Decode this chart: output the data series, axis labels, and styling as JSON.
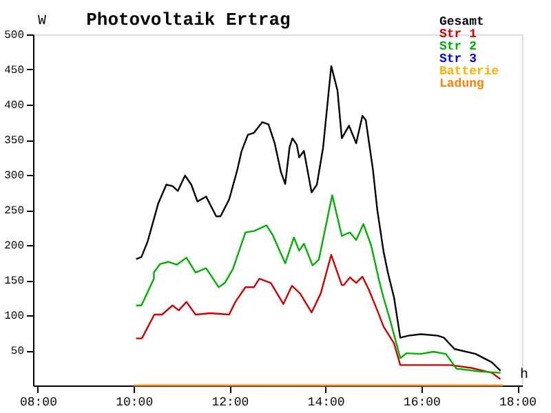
{
  "chart_data": {
    "type": "line",
    "title": "Photovoltaik Ertrag",
    "xlabel": "h",
    "ylabel": "W",
    "xlim": [
      7.9,
      18.1
    ],
    "ylim": [
      0,
      500
    ],
    "xticks": [
      {
        "value": 8,
        "label": "08:00"
      },
      {
        "value": 10,
        "label": "10:00"
      },
      {
        "value": 12,
        "label": "12:00"
      },
      {
        "value": 14,
        "label": "14:00"
      },
      {
        "value": 16,
        "label": "16:00"
      },
      {
        "value": 18,
        "label": "18:00"
      }
    ],
    "yticks": [
      50,
      100,
      150,
      200,
      250,
      300,
      350,
      400,
      450,
      500
    ],
    "grid": false,
    "legend": "top right",
    "marker": "none",
    "line_style": "solid",
    "series": [
      {
        "name": "Gesamt",
        "color": "#000000",
        "x": [
          10.05,
          10.16,
          10.29,
          10.51,
          10.68,
          10.81,
          10.92,
          11.07,
          11.2,
          11.33,
          11.51,
          11.72,
          11.81,
          11.99,
          12.16,
          12.25,
          12.38,
          12.51,
          12.68,
          12.81,
          12.94,
          13.07,
          13.16,
          13.25,
          13.31,
          13.4,
          13.45,
          13.55,
          13.71,
          13.82,
          13.95,
          14.12,
          14.25,
          14.34,
          14.49,
          14.64,
          14.77,
          14.84,
          14.99,
          15.08,
          15.21,
          15.3,
          15.43,
          15.56,
          15.73,
          15.99,
          16.34,
          16.47,
          16.69,
          17.13,
          17.47,
          17.65
        ],
        "values": [
          180,
          183,
          205,
          259,
          286,
          284,
          277,
          299,
          286,
          262,
          269,
          241,
          241,
          265,
          307,
          334,
          357,
          360,
          375,
          372,
          345,
          304,
          287,
          339,
          352,
          343,
          325,
          334,
          275,
          286,
          339,
          455,
          420,
          352,
          370,
          345,
          384,
          378,
          307,
          250,
          191,
          161,
          125,
          68,
          71,
          73,
          71,
          68,
          52,
          45,
          33,
          21
        ]
      },
      {
        "name": "Str 1",
        "color": "#cc0000",
        "x": [
          10.05,
          10.17,
          10.43,
          10.59,
          10.81,
          10.94,
          11.1,
          11.29,
          11.6,
          11.99,
          12.12,
          12.33,
          12.51,
          12.62,
          12.86,
          13.12,
          13.3,
          13.47,
          13.71,
          13.9,
          14.12,
          14.34,
          14.38,
          14.51,
          14.64,
          14.77,
          14.9,
          15.08,
          15.21,
          15.43,
          15.56,
          15.99,
          16.6,
          17.04,
          17.47,
          17.65
        ],
        "values": [
          67,
          67,
          101,
          101,
          114,
          107,
          119,
          101,
          103,
          101,
          119,
          140,
          140,
          152,
          146,
          116,
          142,
          131,
          104,
          131,
          186,
          143,
          143,
          154,
          146,
          155,
          137,
          107,
          84,
          60,
          29,
          29,
          29,
          25,
          18,
          9
        ]
      },
      {
        "name": "Str 2",
        "color": "#00b000",
        "x": [
          10.05,
          10.16,
          10.42,
          10.42,
          10.55,
          10.72,
          10.9,
          11.1,
          11.29,
          11.51,
          11.77,
          11.9,
          12.07,
          12.33,
          12.51,
          12.77,
          12.9,
          13.16,
          13.34,
          13.45,
          13.55,
          13.73,
          13.86,
          14.14,
          14.34,
          14.51,
          14.64,
          14.79,
          14.95,
          15.12,
          15.21,
          15.34,
          15.56,
          15.69,
          15.99,
          16.25,
          16.51,
          16.73,
          17.21,
          17.65
        ],
        "values": [
          114,
          114,
          152,
          161,
          173,
          176,
          172,
          182,
          161,
          167,
          140,
          146,
          166,
          218,
          220,
          228,
          214,
          174,
          211,
          192,
          202,
          171,
          179,
          271,
          213,
          218,
          207,
          230,
          200,
          149,
          125,
          95,
          39,
          46,
          45,
          48,
          45,
          24,
          20,
          18
        ]
      },
      {
        "name": "Str 3",
        "color": "#0000dd"
      },
      {
        "name": "Batterie",
        "color": "#ffb000"
      },
      {
        "name": "Ladung",
        "color": "#ff8000",
        "x": [
          10.0,
          17.7
        ],
        "values": [
          0,
          0
        ]
      }
    ]
  }
}
